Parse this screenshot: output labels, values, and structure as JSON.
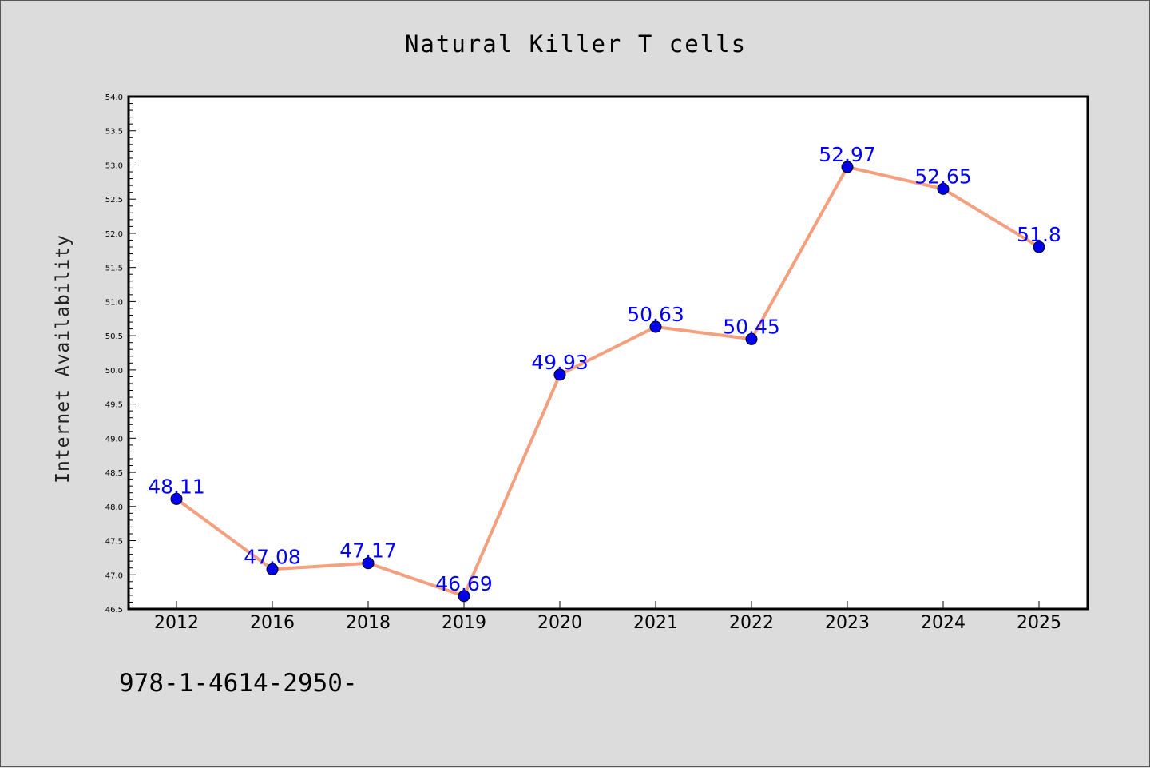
{
  "chart_data": {
    "type": "line",
    "title": "Natural Killer T cells",
    "xlabel": "",
    "ylabel": "Internet Availability",
    "categories": [
      "2012",
      "2016",
      "2018",
      "2019",
      "2020",
      "2021",
      "2022",
      "2023",
      "2024",
      "2025"
    ],
    "series": [
      {
        "values": [
          48.11,
          47.08,
          47.17,
          46.69,
          49.93,
          50.63,
          50.45,
          52.97,
          52.65,
          51.8
        ],
        "data_labels": [
          "48.11",
          "47.08",
          "47.17",
          "46.69",
          "49.93",
          "50.63",
          "50.45",
          "52.97",
          "52.65",
          "51.8"
        ]
      }
    ],
    "ylim": [
      46.5,
      54.0
    ],
    "y_ticks": [
      "46.5",
      "47.0",
      "47.5",
      "48.0",
      "48.5",
      "49.0",
      "49.5",
      "50.0",
      "50.5",
      "51.0",
      "51.5",
      "52.0",
      "52.5",
      "53.0",
      "53.5",
      "54.0"
    ],
    "grid": false,
    "legend": "none",
    "line_color": "#f4a07e",
    "marker_color": "#0000ee",
    "label_color": "#0000ff"
  },
  "footer_text": "978-1-4614-2950-",
  "colors": {
    "background": "#dcdcdc",
    "plot_background": "#ffffff",
    "axis": "#000000"
  }
}
